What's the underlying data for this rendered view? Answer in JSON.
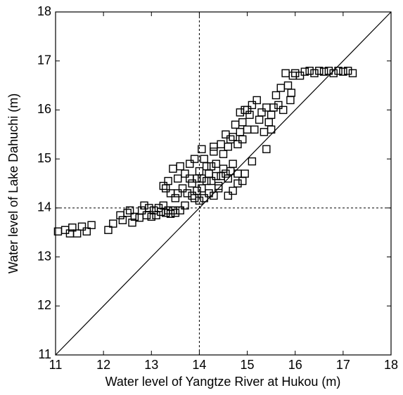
{
  "chart_data": {
    "type": "scatter",
    "x_label": "Water level of Yangtze River at Hukou (m)",
    "y_label": "Water level of Lake Dahuchi (m)",
    "xlim": [
      11,
      18
    ],
    "ylim": [
      11,
      18
    ],
    "xticks": [
      11,
      12,
      13,
      14,
      15,
      16,
      17,
      18
    ],
    "yticks": [
      11,
      12,
      13,
      14,
      15,
      16,
      17,
      18
    ],
    "reference_lines": {
      "x": 14,
      "y": 14,
      "identity": true
    },
    "color": "#000000",
    "marker": "open-square",
    "x": [
      11.05,
      11.2,
      11.3,
      11.35,
      11.45,
      11.55,
      11.65,
      11.75,
      12.1,
      12.2,
      12.35,
      12.4,
      12.5,
      12.6,
      12.65,
      12.75,
      12.8,
      12.85,
      12.9,
      13.0,
      13.05,
      13.1,
      13.15,
      13.2,
      13.25,
      13.3,
      13.35,
      13.4,
      13.45,
      13.5,
      12.55,
      12.95,
      13.3,
      13.25,
      13.4,
      13.35,
      13.45,
      13.5,
      13.55,
      13.6,
      13.65,
      13.7,
      13.75,
      13.8,
      13.85,
      13.9,
      13.95,
      14.0,
      14.05,
      14.1,
      14.15,
      14.2,
      14.25,
      14.3,
      14.35,
      14.4,
      14.45,
      14.5,
      14.55,
      14.6,
      14.65,
      14.7,
      14.75,
      14.8,
      14.85,
      14.9,
      14.95,
      15.0,
      15.05,
      15.1,
      15.15,
      15.2,
      15.25,
      15.3,
      15.35,
      15.4,
      15.45,
      15.5,
      15.55,
      15.6,
      15.65,
      15.7,
      15.75,
      15.8,
      15.85,
      15.9,
      15.92,
      15.95,
      16.0,
      16.1,
      16.2,
      16.3,
      16.4,
      16.5,
      16.6,
      16.7,
      16.8,
      16.9,
      17.0,
      17.1,
      17.2,
      14.6,
      14.7,
      14.8,
      14.9,
      14.95,
      15.1,
      15.4,
      15.5,
      14.3,
      14.0,
      13.7,
      13.6,
      14.1,
      14.4,
      14.2,
      14.35,
      14.5,
      14.6,
      14.7,
      14.8,
      14.9,
      15.0,
      14.85,
      14.55,
      14.65,
      14.45,
      14.25,
      13.95,
      13.85,
      14.15,
      14.05,
      13.9,
      14.3,
      14.05,
      13.8,
      13.55
    ],
    "values": [
      13.52,
      13.55,
      13.48,
      13.6,
      13.48,
      13.62,
      13.52,
      13.65,
      13.55,
      13.68,
      13.85,
      13.75,
      13.9,
      13.7,
      13.82,
      13.8,
      13.95,
      14.05,
      13.85,
      13.82,
      13.95,
      13.85,
      14.0,
      13.92,
      14.05,
      13.9,
      13.95,
      13.88,
      13.95,
      13.9,
      13.95,
      14.0,
      14.4,
      14.45,
      14.3,
      14.55,
      14.8,
      14.2,
      14.6,
      14.85,
      14.4,
      14.7,
      14.3,
      14.9,
      14.5,
      14.2,
      14.6,
      14.75,
      14.4,
      15.0,
      14.55,
      14.3,
      14.85,
      15.15,
      14.65,
      14.45,
      15.3,
      14.8,
      15.5,
      14.6,
      15.4,
      14.9,
      15.7,
      14.7,
      15.95,
      15.4,
      16.0,
      15.6,
      15.9,
      16.1,
      15.6,
      16.2,
      15.8,
      15.95,
      15.55,
      16.05,
      15.75,
      15.9,
      16.05,
      16.3,
      16.1,
      16.45,
      16.0,
      16.75,
      16.5,
      16.2,
      16.35,
      16.7,
      16.75,
      16.7,
      16.78,
      16.8,
      16.75,
      16.8,
      16.78,
      16.8,
      16.75,
      16.8,
      16.78,
      16.8,
      16.75,
      14.25,
      14.35,
      14.5,
      14.55,
      14.7,
      14.95,
      15.2,
      15.6,
      14.25,
      14.15,
      14.05,
      13.95,
      14.2,
      14.4,
      14.7,
      14.9,
      15.1,
      15.25,
      15.45,
      15.3,
      15.75,
      16.0,
      15.55,
      14.7,
      14.75,
      14.65,
      14.55,
      14.35,
      14.25,
      14.85,
      14.6,
      15.0,
      15.25,
      15.2,
      14.6,
      14.3
    ]
  }
}
